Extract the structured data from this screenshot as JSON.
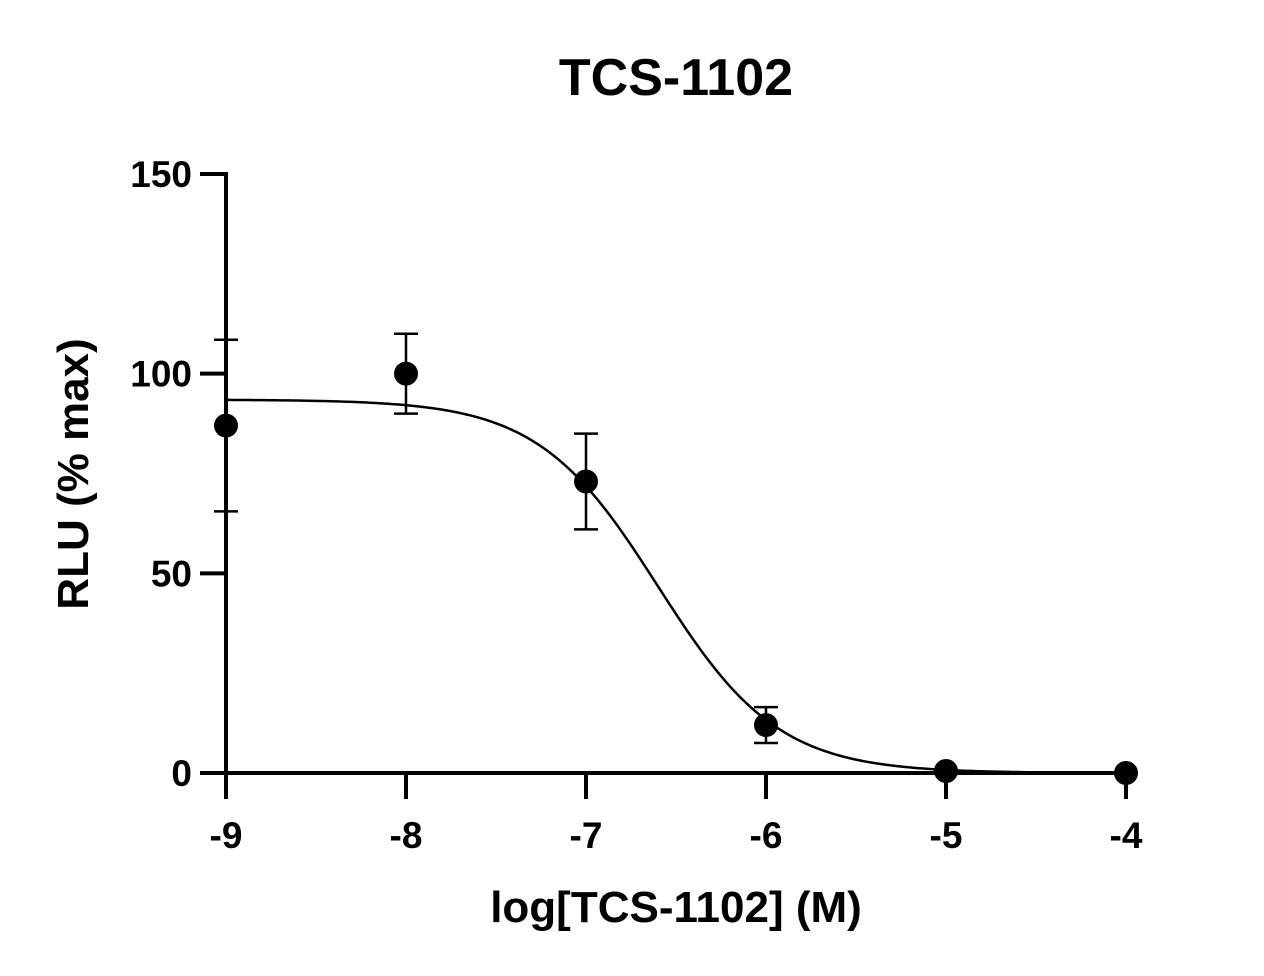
{
  "chart_data": {
    "type": "scatter",
    "title": "TCS-1102",
    "xlabel": "log[TCS-1102] (M)",
    "ylabel": "RLU (% max)",
    "xlim": [
      -9,
      -4
    ],
    "ylim": [
      0,
      150
    ],
    "x_ticks": [
      -9,
      -8,
      -7,
      -6,
      -5,
      -4
    ],
    "x_tick_labels": [
      "-9",
      "-8",
      "-7",
      "-6",
      "-5",
      "-4"
    ],
    "y_ticks": [
      0,
      50,
      100,
      150
    ],
    "y_tick_labels": [
      "0",
      "50",
      "100",
      "150"
    ],
    "grid": false,
    "series": [
      {
        "x": [
          -9,
          -8,
          -7,
          -6,
          -5,
          -4
        ],
        "y": [
          87,
          100,
          73,
          12,
          0.5,
          0
        ],
        "error": [
          21.5,
          10,
          12,
          4.5,
          0,
          0
        ]
      }
    ],
    "fit": {
      "model": "four-parameter logistic (inhibition)",
      "top": 93.5,
      "bottom": 0,
      "log_ic50": -6.6,
      "hill_slope": -1.3
    },
    "colors": {
      "marker": "#000000",
      "line": "#000000",
      "background": "#ffffff"
    }
  }
}
